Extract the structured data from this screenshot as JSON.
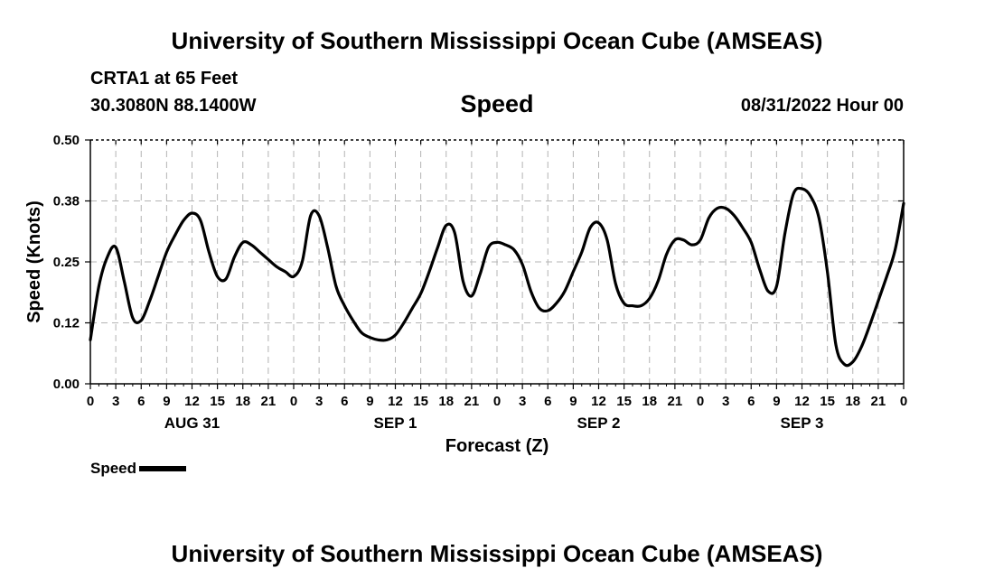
{
  "page": {
    "title_top": "University of Southern Mississippi Ocean Cube (AMSEAS)",
    "title_bottom": "University of Southern Mississippi Ocean Cube (AMSEAS)",
    "station": "CRTA1 at 65 Feet",
    "coords": "30.3080N  88.1400W",
    "date": "08/31/2022 Hour 00"
  },
  "chart_data": {
    "type": "line",
    "title": "Speed",
    "xlabel": "Forecast (Z)",
    "ylabel": "Speed (Knots)",
    "xlim": [
      0,
      96
    ],
    "ylim": [
      0,
      0.5
    ],
    "ytick_values": [
      0,
      0.125,
      0.25,
      0.375,
      0.5
    ],
    "ytick_labels": [
      "0.00",
      "0.12",
      "0.25",
      "0.38",
      "0.50"
    ],
    "xtick_labels": [
      "0",
      "3",
      "6",
      "9",
      "12",
      "15",
      "18",
      "21",
      "0",
      "3",
      "6",
      "9",
      "12",
      "15",
      "18",
      "21",
      "0",
      "3",
      "6",
      "9",
      "12",
      "15",
      "18",
      "21",
      "0",
      "3",
      "6",
      "9",
      "12",
      "15",
      "18",
      "21",
      "0"
    ],
    "day_labels": [
      {
        "label": "AUG 31",
        "hour": 12
      },
      {
        "label": "SEP 1",
        "hour": 36
      },
      {
        "label": "SEP 2",
        "hour": 60
      },
      {
        "label": "SEP 3",
        "hour": 84
      }
    ],
    "grid": true,
    "series": [
      {
        "name": "Speed",
        "color": "#000000",
        "x": [
          0,
          1,
          2,
          3,
          4,
          5,
          6,
          7,
          8,
          9,
          10,
          11,
          12,
          13,
          14,
          15,
          16,
          17,
          18,
          19,
          20,
          21,
          22,
          23,
          24,
          25,
          26,
          27,
          28,
          29,
          30,
          31,
          32,
          33,
          34,
          35,
          36,
          37,
          38,
          39,
          40,
          41,
          42,
          43,
          44,
          45,
          46,
          47,
          48,
          49,
          50,
          51,
          52,
          53,
          54,
          55,
          56,
          57,
          58,
          59,
          60,
          61,
          62,
          63,
          64,
          65,
          66,
          67,
          68,
          69,
          70,
          71,
          72,
          73,
          74,
          75,
          76,
          77,
          78,
          79,
          80,
          81,
          82,
          83,
          84,
          85,
          86,
          87,
          88,
          89,
          90,
          91,
          92,
          93,
          94,
          95,
          96
        ],
        "values": [
          0.09,
          0.2,
          0.26,
          0.28,
          0.21,
          0.135,
          0.13,
          0.17,
          0.22,
          0.27,
          0.305,
          0.335,
          0.35,
          0.335,
          0.27,
          0.22,
          0.215,
          0.26,
          0.29,
          0.285,
          0.27,
          0.255,
          0.24,
          0.23,
          0.22,
          0.25,
          0.345,
          0.345,
          0.28,
          0.2,
          0.16,
          0.13,
          0.105,
          0.095,
          0.09,
          0.09,
          0.1,
          0.125,
          0.155,
          0.185,
          0.23,
          0.28,
          0.325,
          0.31,
          0.21,
          0.18,
          0.225,
          0.28,
          0.29,
          0.285,
          0.275,
          0.245,
          0.19,
          0.155,
          0.15,
          0.165,
          0.19,
          0.23,
          0.27,
          0.32,
          0.33,
          0.295,
          0.205,
          0.165,
          0.16,
          0.16,
          0.175,
          0.21,
          0.265,
          0.295,
          0.295,
          0.285,
          0.295,
          0.34,
          0.36,
          0.36,
          0.345,
          0.32,
          0.29,
          0.235,
          0.19,
          0.2,
          0.31,
          0.39,
          0.4,
          0.385,
          0.34,
          0.23,
          0.08,
          0.04,
          0.045,
          0.075,
          0.12,
          0.17,
          0.22,
          0.275,
          0.37
        ]
      }
    ],
    "legend": {
      "label": "Speed",
      "placement": "bottom-left"
    }
  }
}
